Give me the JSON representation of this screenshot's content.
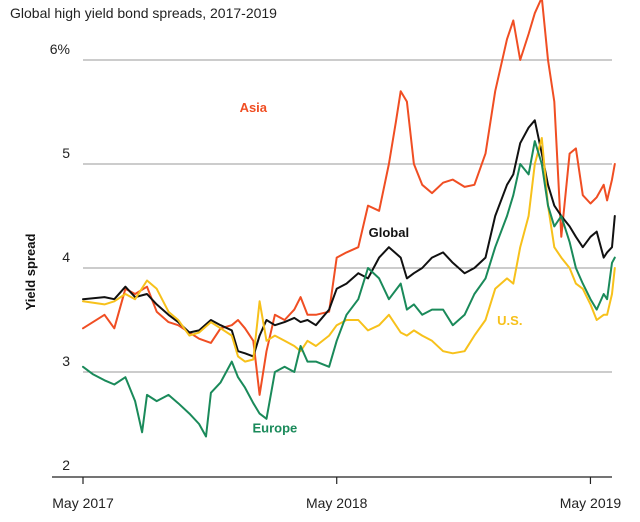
{
  "chart_data": {
    "type": "line",
    "title": "Global high yield bond spreads, 2017-2019",
    "ylabel": "Yield spread",
    "xlabel": "",
    "ylim": [
      2,
      6.6
    ],
    "xlim": [
      "2017-05",
      "2019-06"
    ],
    "y_ticks": [
      "2",
      "3",
      "4",
      "5",
      "6%"
    ],
    "x_ticks": [
      {
        "label": "May 2017",
        "x": "2017-05"
      },
      {
        "label": "May 2018",
        "x": "2018-05"
      },
      {
        "label": "May 2019",
        "x": "2019-05"
      }
    ],
    "grid": true,
    "series": [
      {
        "name": "Asia",
        "color": "#f04e23",
        "label_at": {
          "x": "2018-01",
          "y": 5.5
        },
        "points": [
          [
            "2017-05",
            3.42
          ],
          [
            "2017-06",
            3.55
          ],
          [
            "2017-06-15",
            3.42
          ],
          [
            "2017-07",
            3.8
          ],
          [
            "2017-07-15",
            3.75
          ],
          [
            "2017-08",
            3.82
          ],
          [
            "2017-08-15",
            3.58
          ],
          [
            "2017-09",
            3.48
          ],
          [
            "2017-09-15",
            3.45
          ],
          [
            "2017-10",
            3.38
          ],
          [
            "2017-10-15",
            3.32
          ],
          [
            "2017-11",
            3.28
          ],
          [
            "2017-11-15",
            3.42
          ],
          [
            "2017-12",
            3.45
          ],
          [
            "2017-12-10",
            3.5
          ],
          [
            "2017-12-20",
            3.42
          ],
          [
            "2018-01",
            3.3
          ],
          [
            "2018-01-10",
            2.78
          ],
          [
            "2018-01-20",
            3.2
          ],
          [
            "2018-02",
            3.55
          ],
          [
            "2018-02-15",
            3.5
          ],
          [
            "2018-03",
            3.6
          ],
          [
            "2018-03-10",
            3.72
          ],
          [
            "2018-03-20",
            3.55
          ],
          [
            "2018-04",
            3.55
          ],
          [
            "2018-04-20",
            3.58
          ],
          [
            "2018-05",
            4.1
          ],
          [
            "2018-05-15",
            4.15
          ],
          [
            "2018-06",
            4.2
          ],
          [
            "2018-06-15",
            4.6
          ],
          [
            "2018-07",
            4.55
          ],
          [
            "2018-07-15",
            5.0
          ],
          [
            "2018-07-25",
            5.4
          ],
          [
            "2018-08",
            5.7
          ],
          [
            "2018-08-10",
            5.6
          ],
          [
            "2018-08-20",
            5.0
          ],
          [
            "2018-09",
            4.8
          ],
          [
            "2018-09-15",
            4.72
          ],
          [
            "2018-10",
            4.82
          ],
          [
            "2018-10-15",
            4.85
          ],
          [
            "2018-11",
            4.78
          ],
          [
            "2018-11-15",
            4.8
          ],
          [
            "2018-12",
            5.1
          ],
          [
            "2018-12-15",
            5.7
          ],
          [
            "2019-01",
            6.2
          ],
          [
            "2019-01-10",
            6.38
          ],
          [
            "2019-01-20",
            6.0
          ],
          [
            "2019-02",
            6.25
          ],
          [
            "2019-02-10",
            6.45
          ],
          [
            "2019-02-20",
            6.6
          ],
          [
            "2019-03",
            6.0
          ],
          [
            "2019-03-10",
            5.6
          ],
          [
            "2019-03-20",
            4.3
          ],
          [
            "2019-04",
            5.1
          ],
          [
            "2019-04-10",
            5.15
          ],
          [
            "2019-04-20",
            4.7
          ],
          [
            "2019-05",
            4.62
          ],
          [
            "2019-05-10",
            4.68
          ],
          [
            "2019-05-20",
            4.8
          ],
          [
            "2019-05-25",
            4.65
          ],
          [
            "2019-06",
            4.85
          ],
          [
            "2019-06-05",
            5.0
          ]
        ]
      },
      {
        "name": "Global",
        "color": "#111111",
        "label_at": {
          "x": "2018-07-15",
          "y": 4.3
        },
        "points": [
          [
            "2017-05",
            3.7
          ],
          [
            "2017-06",
            3.72
          ],
          [
            "2017-06-15",
            3.7
          ],
          [
            "2017-07",
            3.82
          ],
          [
            "2017-07-15",
            3.72
          ],
          [
            "2017-08",
            3.75
          ],
          [
            "2017-08-15",
            3.65
          ],
          [
            "2017-09",
            3.55
          ],
          [
            "2017-09-15",
            3.48
          ],
          [
            "2017-10",
            3.38
          ],
          [
            "2017-10-15",
            3.4
          ],
          [
            "2017-11",
            3.5
          ],
          [
            "2017-11-15",
            3.45
          ],
          [
            "2017-12",
            3.4
          ],
          [
            "2017-12-10",
            3.2
          ],
          [
            "2017-12-20",
            3.18
          ],
          [
            "2018-01",
            3.15
          ],
          [
            "2018-01-10",
            3.35
          ],
          [
            "2018-01-20",
            3.5
          ],
          [
            "2018-02",
            3.45
          ],
          [
            "2018-02-15",
            3.48
          ],
          [
            "2018-03",
            3.52
          ],
          [
            "2018-03-10",
            3.48
          ],
          [
            "2018-03-20",
            3.5
          ],
          [
            "2018-04",
            3.45
          ],
          [
            "2018-04-20",
            3.6
          ],
          [
            "2018-05",
            3.8
          ],
          [
            "2018-05-15",
            3.85
          ],
          [
            "2018-06",
            3.95
          ],
          [
            "2018-06-15",
            3.9
          ],
          [
            "2018-07",
            4.1
          ],
          [
            "2018-07-15",
            4.2
          ],
          [
            "2018-08",
            4.1
          ],
          [
            "2018-08-10",
            3.9
          ],
          [
            "2018-08-20",
            3.95
          ],
          [
            "2018-09",
            4.0
          ],
          [
            "2018-09-15",
            4.1
          ],
          [
            "2018-10",
            4.15
          ],
          [
            "2018-10-15",
            4.05
          ],
          [
            "2018-11",
            3.95
          ],
          [
            "2018-11-15",
            4.0
          ],
          [
            "2018-12",
            4.1
          ],
          [
            "2018-12-15",
            4.5
          ],
          [
            "2019-01",
            4.8
          ],
          [
            "2019-01-10",
            4.9
          ],
          [
            "2019-01-20",
            5.2
          ],
          [
            "2019-02",
            5.35
          ],
          [
            "2019-02-10",
            5.42
          ],
          [
            "2019-02-20",
            5.1
          ],
          [
            "2019-03",
            4.8
          ],
          [
            "2019-03-10",
            4.6
          ],
          [
            "2019-03-20",
            4.5
          ],
          [
            "2019-04",
            4.4
          ],
          [
            "2019-04-10",
            4.3
          ],
          [
            "2019-04-20",
            4.2
          ],
          [
            "2019-05",
            4.3
          ],
          [
            "2019-05-10",
            4.35
          ],
          [
            "2019-05-20",
            4.1
          ],
          [
            "2019-05-25",
            4.15
          ],
          [
            "2019-06",
            4.2
          ],
          [
            "2019-06-05",
            4.5
          ]
        ]
      },
      {
        "name": "U.S.",
        "color": "#f7c11b",
        "label_at": {
          "x": "2019-01-05",
          "y": 3.45
        },
        "points": [
          [
            "2017-05",
            3.68
          ],
          [
            "2017-06",
            3.65
          ],
          [
            "2017-06-15",
            3.68
          ],
          [
            "2017-07",
            3.75
          ],
          [
            "2017-07-15",
            3.7
          ],
          [
            "2017-08",
            3.88
          ],
          [
            "2017-08-15",
            3.8
          ],
          [
            "2017-09",
            3.58
          ],
          [
            "2017-09-15",
            3.5
          ],
          [
            "2017-10",
            3.35
          ],
          [
            "2017-10-15",
            3.38
          ],
          [
            "2017-11",
            3.48
          ],
          [
            "2017-11-15",
            3.42
          ],
          [
            "2017-12",
            3.35
          ],
          [
            "2017-12-10",
            3.15
          ],
          [
            "2017-12-20",
            3.1
          ],
          [
            "2018-01",
            3.12
          ],
          [
            "2018-01-10",
            3.68
          ],
          [
            "2018-01-20",
            3.3
          ],
          [
            "2018-02",
            3.35
          ],
          [
            "2018-02-15",
            3.3
          ],
          [
            "2018-03",
            3.25
          ],
          [
            "2018-03-10",
            3.2
          ],
          [
            "2018-03-20",
            3.3
          ],
          [
            "2018-04",
            3.25
          ],
          [
            "2018-04-20",
            3.35
          ],
          [
            "2018-05",
            3.45
          ],
          [
            "2018-05-15",
            3.5
          ],
          [
            "2018-06",
            3.5
          ],
          [
            "2018-06-15",
            3.4
          ],
          [
            "2018-07",
            3.45
          ],
          [
            "2018-07-15",
            3.55
          ],
          [
            "2018-08",
            3.38
          ],
          [
            "2018-08-10",
            3.35
          ],
          [
            "2018-08-20",
            3.4
          ],
          [
            "2018-09",
            3.35
          ],
          [
            "2018-09-15",
            3.3
          ],
          [
            "2018-10",
            3.2
          ],
          [
            "2018-10-15",
            3.18
          ],
          [
            "2018-11",
            3.2
          ],
          [
            "2018-11-15",
            3.35
          ],
          [
            "2018-12",
            3.5
          ],
          [
            "2018-12-15",
            3.8
          ],
          [
            "2019-01",
            3.9
          ],
          [
            "2019-01-10",
            3.85
          ],
          [
            "2019-01-20",
            4.2
          ],
          [
            "2019-02",
            4.5
          ],
          [
            "2019-02-10",
            5.0
          ],
          [
            "2019-02-20",
            5.25
          ],
          [
            "2019-03",
            4.6
          ],
          [
            "2019-03-10",
            4.2
          ],
          [
            "2019-03-20",
            4.1
          ],
          [
            "2019-04",
            4.0
          ],
          [
            "2019-04-10",
            3.85
          ],
          [
            "2019-04-20",
            3.8
          ],
          [
            "2019-05",
            3.65
          ],
          [
            "2019-05-10",
            3.5
          ],
          [
            "2019-05-20",
            3.55
          ],
          [
            "2019-05-25",
            3.55
          ],
          [
            "2019-06",
            3.75
          ],
          [
            "2019-06-05",
            4.0
          ]
        ]
      },
      {
        "name": "Europe",
        "color": "#1a8a5a",
        "label_at": {
          "x": "2018-02",
          "y": 2.42
        },
        "points": [
          [
            "2017-05",
            3.05
          ],
          [
            "2017-05-15",
            2.98
          ],
          [
            "2017-06",
            2.92
          ],
          [
            "2017-06-15",
            2.88
          ],
          [
            "2017-07",
            2.95
          ],
          [
            "2017-07-15",
            2.72
          ],
          [
            "2017-07-25",
            2.42
          ],
          [
            "2017-08",
            2.78
          ],
          [
            "2017-08-15",
            2.72
          ],
          [
            "2017-09",
            2.78
          ],
          [
            "2017-09-15",
            2.7
          ],
          [
            "2017-10",
            2.6
          ],
          [
            "2017-10-15",
            2.5
          ],
          [
            "2017-10-25",
            2.38
          ],
          [
            "2017-11",
            2.8
          ],
          [
            "2017-11-15",
            2.9
          ],
          [
            "2017-12",
            3.1
          ],
          [
            "2017-12-10",
            2.95
          ],
          [
            "2017-12-20",
            2.85
          ],
          [
            "2018-01",
            2.7
          ],
          [
            "2018-01-10",
            2.6
          ],
          [
            "2018-01-20",
            2.55
          ],
          [
            "2018-02",
            3.0
          ],
          [
            "2018-02-15",
            3.05
          ],
          [
            "2018-03",
            3.0
          ],
          [
            "2018-03-10",
            3.25
          ],
          [
            "2018-03-20",
            3.1
          ],
          [
            "2018-04",
            3.1
          ],
          [
            "2018-04-20",
            3.05
          ],
          [
            "2018-05",
            3.3
          ],
          [
            "2018-05-15",
            3.55
          ],
          [
            "2018-06",
            3.7
          ],
          [
            "2018-06-15",
            4.0
          ],
          [
            "2018-07",
            3.9
          ],
          [
            "2018-07-15",
            3.7
          ],
          [
            "2018-08",
            3.85
          ],
          [
            "2018-08-10",
            3.6
          ],
          [
            "2018-08-20",
            3.65
          ],
          [
            "2018-09",
            3.55
          ],
          [
            "2018-09-15",
            3.6
          ],
          [
            "2018-10",
            3.6
          ],
          [
            "2018-10-15",
            3.45
          ],
          [
            "2018-11",
            3.55
          ],
          [
            "2018-11-15",
            3.75
          ],
          [
            "2018-12",
            3.9
          ],
          [
            "2018-12-15",
            4.2
          ],
          [
            "2019-01",
            4.5
          ],
          [
            "2019-01-10",
            4.7
          ],
          [
            "2019-01-20",
            5.0
          ],
          [
            "2019-02",
            4.9
          ],
          [
            "2019-02-10",
            5.22
          ],
          [
            "2019-02-20",
            5.0
          ],
          [
            "2019-03",
            4.6
          ],
          [
            "2019-03-10",
            4.4
          ],
          [
            "2019-03-20",
            4.5
          ],
          [
            "2019-04",
            4.25
          ],
          [
            "2019-04-10",
            4.0
          ],
          [
            "2019-04-20",
            3.85
          ],
          [
            "2019-05",
            3.7
          ],
          [
            "2019-05-10",
            3.6
          ],
          [
            "2019-05-20",
            3.75
          ],
          [
            "2019-05-25",
            3.7
          ],
          [
            "2019-06",
            4.05
          ],
          [
            "2019-06-05",
            4.1
          ]
        ]
      }
    ]
  }
}
